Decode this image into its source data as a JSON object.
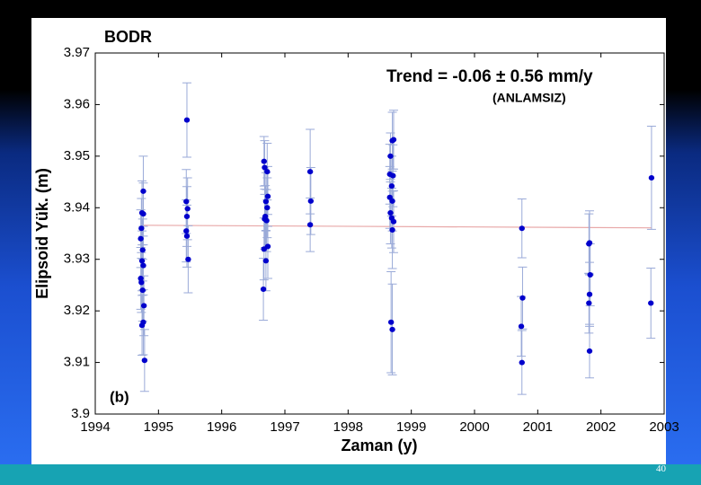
{
  "chart_data": {
    "type": "scatter",
    "title": "BODR",
    "annotations": [
      "Trend = -0.06 ± 0.56 mm/y",
      "(ANLAMSIZ)",
      "(b)"
    ],
    "x_label": "Zaman (y)",
    "y_label": "Elipsoid Yük. (m)",
    "xlim": [
      1994,
      2003
    ],
    "xticks": [
      1994,
      1995,
      1996,
      1997,
      1998,
      1999,
      2000,
      2001,
      2002,
      2003
    ],
    "ylim": [
      3.9,
      3.97
    ],
    "yticks": [
      3.9,
      3.91,
      3.92,
      3.93,
      3.94,
      3.95,
      3.96,
      3.97
    ],
    "grid": false,
    "series": [
      {
        "color": "#0000cc",
        "error_color": "#9aaad8",
        "x": [
          1994.76,
          1994.74,
          1994.76,
          1994.73,
          1994.72,
          1994.75,
          1994.74,
          1994.76,
          1994.72,
          1994.73,
          1994.75,
          1994.77,
          1994.76,
          1994.74,
          1994.78,
          1995.45,
          1995.44,
          1995.46,
          1995.45,
          1995.44,
          1995.45,
          1995.47,
          1996.67,
          1996.68,
          1996.72,
          1996.73,
          1996.7,
          1996.72,
          1996.69,
          1996.68,
          1996.71,
          1996.73,
          1996.67,
          1996.7,
          1996.66,
          1997.4,
          1997.41,
          1997.4,
          1998.72,
          1998.7,
          1998.67,
          1998.66,
          1998.71,
          1998.69,
          1998.66,
          1998.7,
          1998.67,
          1998.69,
          1998.72,
          1998.7,
          1998.68,
          1998.7,
          2000.75,
          2000.76,
          2000.74,
          2000.75,
          2001.82,
          2001.81,
          2001.83,
          2001.82,
          2001.81,
          2001.82,
          2002.8,
          2002.79
        ],
        "values": [
          3.9432,
          3.939,
          3.9388,
          3.936,
          3.934,
          3.9318,
          3.9297,
          3.9288,
          3.9263,
          3.9255,
          3.924,
          3.921,
          3.9178,
          3.9172,
          3.9104,
          3.957,
          3.9412,
          3.9398,
          3.9383,
          3.9355,
          3.9345,
          3.93,
          3.949,
          3.9478,
          3.947,
          3.9422,
          3.9412,
          3.94,
          3.9383,
          3.9378,
          3.9375,
          3.9325,
          3.932,
          3.9297,
          3.9242,
          3.947,
          3.9413,
          3.9367,
          3.9532,
          3.953,
          3.95,
          3.9465,
          3.9462,
          3.9442,
          3.942,
          3.9413,
          3.939,
          3.938,
          3.9373,
          3.9357,
          3.9178,
          3.9164,
          3.936,
          3.9225,
          3.917,
          3.91,
          3.9332,
          3.933,
          3.927,
          3.9232,
          3.9215,
          3.9122,
          3.9458,
          3.9215
        ],
        "errors": [
          0.0068,
          0.0062,
          0.006,
          0.0058,
          0.0056,
          0.006,
          0.0058,
          0.0057,
          0.006,
          0.0058,
          0.006,
          0.0058,
          0.0063,
          0.0058,
          0.006,
          0.0072,
          0.0062,
          0.006,
          0.0058,
          0.006,
          0.006,
          0.0065,
          0.0048,
          0.0052,
          0.0055,
          0.0058,
          0.0056,
          0.0058,
          0.006,
          0.0058,
          0.006,
          0.0062,
          0.006,
          0.0058,
          0.006,
          0.0082,
          0.0065,
          0.0052,
          0.0057,
          0.0055,
          0.0045,
          0.0058,
          0.006,
          0.0058,
          0.006,
          0.0058,
          0.006,
          0.0058,
          0.006,
          0.0075,
          0.0098,
          0.0088,
          0.0057,
          0.006,
          0.0058,
          0.0062,
          0.0062,
          0.0058,
          0.006,
          0.0062,
          0.0058,
          0.0052,
          0.01,
          0.0068
        ]
      }
    ],
    "trend": {
      "color": "#e8a8a8",
      "x": [
        1994.75,
        2002.8
      ],
      "values": [
        3.9366,
        3.9361
      ]
    }
  },
  "page_number": 40
}
